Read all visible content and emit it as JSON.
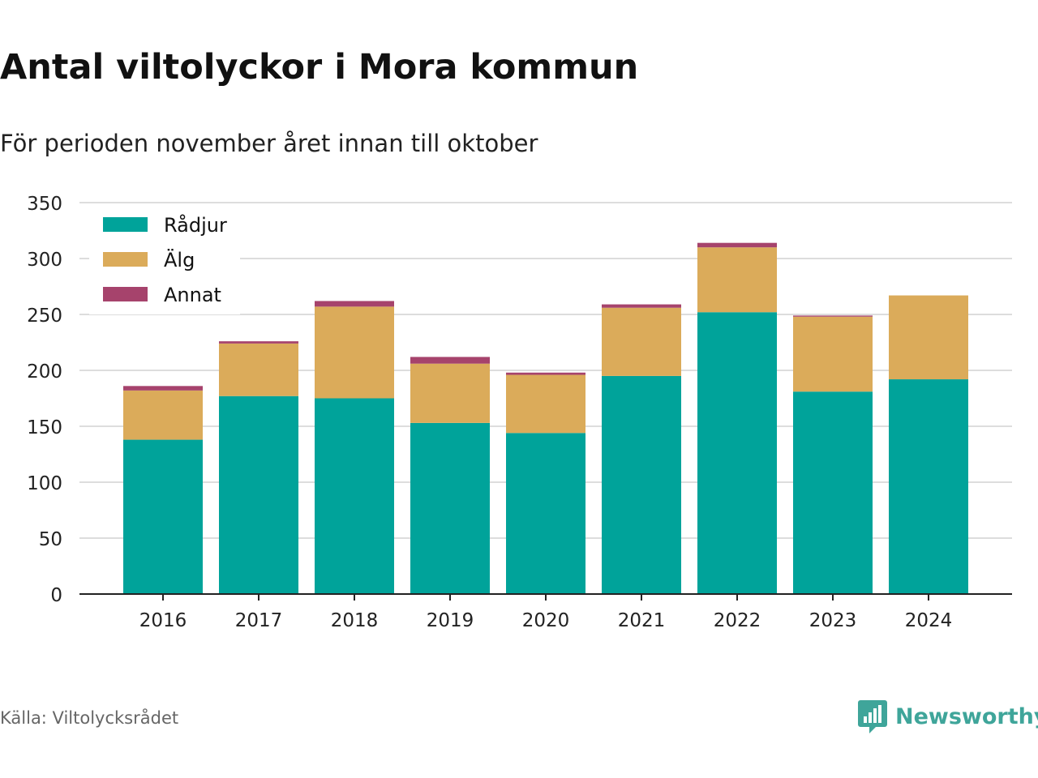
{
  "title": "Antal viltolyckor i Mora kommun",
  "subtitle": "För perioden november året innan till oktober",
  "source": "Källa: Viltolycksrådet",
  "brand": "Newsworthy",
  "colors": {
    "radjur": "#00a39a",
    "alg": "#dbab5a",
    "annat": "#a6436c",
    "grid": "#dddddd",
    "axis": "#222222",
    "brand": "#3fa59a"
  },
  "chart_data": {
    "type": "bar",
    "stacked": true,
    "categories": [
      "2016",
      "2017",
      "2018",
      "2019",
      "2020",
      "2021",
      "2022",
      "2023",
      "2024"
    ],
    "series": [
      {
        "name": "Rådjur",
        "color": "#00a39a",
        "values": [
          138,
          177,
          175,
          153,
          144,
          195,
          252,
          181,
          192
        ]
      },
      {
        "name": "Älg",
        "color": "#dbab5a",
        "values": [
          44,
          47,
          82,
          53,
          52,
          61,
          58,
          67,
          75
        ]
      },
      {
        "name": "Annat",
        "color": "#a6436c",
        "values": [
          4,
          2,
          5,
          6,
          2,
          3,
          4,
          1,
          0
        ]
      }
    ],
    "ylim": [
      0,
      350
    ],
    "yticks": [
      0,
      50,
      100,
      150,
      200,
      250,
      300,
      350
    ],
    "grid": true,
    "legend_position": "top-left"
  }
}
